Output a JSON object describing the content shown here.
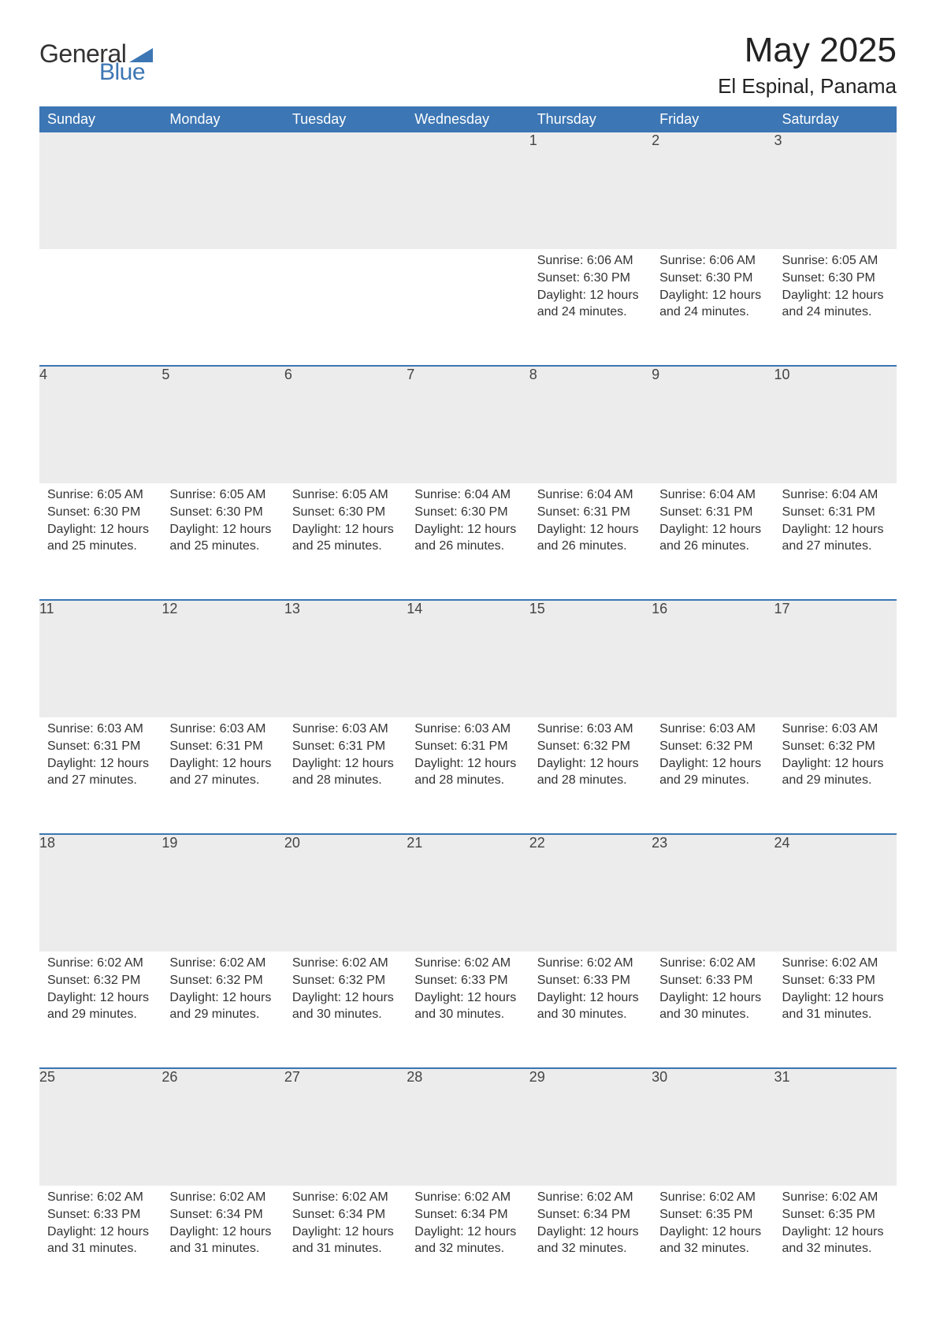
{
  "brand": {
    "general": "General",
    "blue": "Blue",
    "general_color": "#333333",
    "blue_color": "#3c76b4",
    "shape_color": "#3c76b4"
  },
  "title": {
    "month": "May 2025",
    "location": "El Espinal, Panama",
    "month_fontsize": 44,
    "location_fontsize": 26,
    "title_color": "#222222"
  },
  "calendar": {
    "header_bg": "#3c76b4",
    "header_text_color": "#ffffff",
    "daynum_bg": "#ececec",
    "separator_color": "#3c76b4",
    "text_color": "#333333",
    "background_color": "#ffffff",
    "header_fontsize": 18,
    "daynum_fontsize": 18,
    "body_fontsize": 16,
    "columns": [
      "Sunday",
      "Monday",
      "Tuesday",
      "Wednesday",
      "Thursday",
      "Friday",
      "Saturday"
    ],
    "weeks": [
      [
        null,
        null,
        null,
        null,
        {
          "n": "1",
          "sunrise": "Sunrise: 6:06 AM",
          "sunset": "Sunset: 6:30 PM",
          "day1": "Daylight: 12 hours",
          "day2": "and 24 minutes."
        },
        {
          "n": "2",
          "sunrise": "Sunrise: 6:06 AM",
          "sunset": "Sunset: 6:30 PM",
          "day1": "Daylight: 12 hours",
          "day2": "and 24 minutes."
        },
        {
          "n": "3",
          "sunrise": "Sunrise: 6:05 AM",
          "sunset": "Sunset: 6:30 PM",
          "day1": "Daylight: 12 hours",
          "day2": "and 24 minutes."
        }
      ],
      [
        {
          "n": "4",
          "sunrise": "Sunrise: 6:05 AM",
          "sunset": "Sunset: 6:30 PM",
          "day1": "Daylight: 12 hours",
          "day2": "and 25 minutes."
        },
        {
          "n": "5",
          "sunrise": "Sunrise: 6:05 AM",
          "sunset": "Sunset: 6:30 PM",
          "day1": "Daylight: 12 hours",
          "day2": "and 25 minutes."
        },
        {
          "n": "6",
          "sunrise": "Sunrise: 6:05 AM",
          "sunset": "Sunset: 6:30 PM",
          "day1": "Daylight: 12 hours",
          "day2": "and 25 minutes."
        },
        {
          "n": "7",
          "sunrise": "Sunrise: 6:04 AM",
          "sunset": "Sunset: 6:30 PM",
          "day1": "Daylight: 12 hours",
          "day2": "and 26 minutes."
        },
        {
          "n": "8",
          "sunrise": "Sunrise: 6:04 AM",
          "sunset": "Sunset: 6:31 PM",
          "day1": "Daylight: 12 hours",
          "day2": "and 26 minutes."
        },
        {
          "n": "9",
          "sunrise": "Sunrise: 6:04 AM",
          "sunset": "Sunset: 6:31 PM",
          "day1": "Daylight: 12 hours",
          "day2": "and 26 minutes."
        },
        {
          "n": "10",
          "sunrise": "Sunrise: 6:04 AM",
          "sunset": "Sunset: 6:31 PM",
          "day1": "Daylight: 12 hours",
          "day2": "and 27 minutes."
        }
      ],
      [
        {
          "n": "11",
          "sunrise": "Sunrise: 6:03 AM",
          "sunset": "Sunset: 6:31 PM",
          "day1": "Daylight: 12 hours",
          "day2": "and 27 minutes."
        },
        {
          "n": "12",
          "sunrise": "Sunrise: 6:03 AM",
          "sunset": "Sunset: 6:31 PM",
          "day1": "Daylight: 12 hours",
          "day2": "and 27 minutes."
        },
        {
          "n": "13",
          "sunrise": "Sunrise: 6:03 AM",
          "sunset": "Sunset: 6:31 PM",
          "day1": "Daylight: 12 hours",
          "day2": "and 28 minutes."
        },
        {
          "n": "14",
          "sunrise": "Sunrise: 6:03 AM",
          "sunset": "Sunset: 6:31 PM",
          "day1": "Daylight: 12 hours",
          "day2": "and 28 minutes."
        },
        {
          "n": "15",
          "sunrise": "Sunrise: 6:03 AM",
          "sunset": "Sunset: 6:32 PM",
          "day1": "Daylight: 12 hours",
          "day2": "and 28 minutes."
        },
        {
          "n": "16",
          "sunrise": "Sunrise: 6:03 AM",
          "sunset": "Sunset: 6:32 PM",
          "day1": "Daylight: 12 hours",
          "day2": "and 29 minutes."
        },
        {
          "n": "17",
          "sunrise": "Sunrise: 6:03 AM",
          "sunset": "Sunset: 6:32 PM",
          "day1": "Daylight: 12 hours",
          "day2": "and 29 minutes."
        }
      ],
      [
        {
          "n": "18",
          "sunrise": "Sunrise: 6:02 AM",
          "sunset": "Sunset: 6:32 PM",
          "day1": "Daylight: 12 hours",
          "day2": "and 29 minutes."
        },
        {
          "n": "19",
          "sunrise": "Sunrise: 6:02 AM",
          "sunset": "Sunset: 6:32 PM",
          "day1": "Daylight: 12 hours",
          "day2": "and 29 minutes."
        },
        {
          "n": "20",
          "sunrise": "Sunrise: 6:02 AM",
          "sunset": "Sunset: 6:32 PM",
          "day1": "Daylight: 12 hours",
          "day2": "and 30 minutes."
        },
        {
          "n": "21",
          "sunrise": "Sunrise: 6:02 AM",
          "sunset": "Sunset: 6:33 PM",
          "day1": "Daylight: 12 hours",
          "day2": "and 30 minutes."
        },
        {
          "n": "22",
          "sunrise": "Sunrise: 6:02 AM",
          "sunset": "Sunset: 6:33 PM",
          "day1": "Daylight: 12 hours",
          "day2": "and 30 minutes."
        },
        {
          "n": "23",
          "sunrise": "Sunrise: 6:02 AM",
          "sunset": "Sunset: 6:33 PM",
          "day1": "Daylight: 12 hours",
          "day2": "and 30 minutes."
        },
        {
          "n": "24",
          "sunrise": "Sunrise: 6:02 AM",
          "sunset": "Sunset: 6:33 PM",
          "day1": "Daylight: 12 hours",
          "day2": "and 31 minutes."
        }
      ],
      [
        {
          "n": "25",
          "sunrise": "Sunrise: 6:02 AM",
          "sunset": "Sunset: 6:33 PM",
          "day1": "Daylight: 12 hours",
          "day2": "and 31 minutes."
        },
        {
          "n": "26",
          "sunrise": "Sunrise: 6:02 AM",
          "sunset": "Sunset: 6:34 PM",
          "day1": "Daylight: 12 hours",
          "day2": "and 31 minutes."
        },
        {
          "n": "27",
          "sunrise": "Sunrise: 6:02 AM",
          "sunset": "Sunset: 6:34 PM",
          "day1": "Daylight: 12 hours",
          "day2": "and 31 minutes."
        },
        {
          "n": "28",
          "sunrise": "Sunrise: 6:02 AM",
          "sunset": "Sunset: 6:34 PM",
          "day1": "Daylight: 12 hours",
          "day2": "and 32 minutes."
        },
        {
          "n": "29",
          "sunrise": "Sunrise: 6:02 AM",
          "sunset": "Sunset: 6:34 PM",
          "day1": "Daylight: 12 hours",
          "day2": "and 32 minutes."
        },
        {
          "n": "30",
          "sunrise": "Sunrise: 6:02 AM",
          "sunset": "Sunset: 6:35 PM",
          "day1": "Daylight: 12 hours",
          "day2": "and 32 minutes."
        },
        {
          "n": "31",
          "sunrise": "Sunrise: 6:02 AM",
          "sunset": "Sunset: 6:35 PM",
          "day1": "Daylight: 12 hours",
          "day2": "and 32 minutes."
        }
      ]
    ]
  }
}
